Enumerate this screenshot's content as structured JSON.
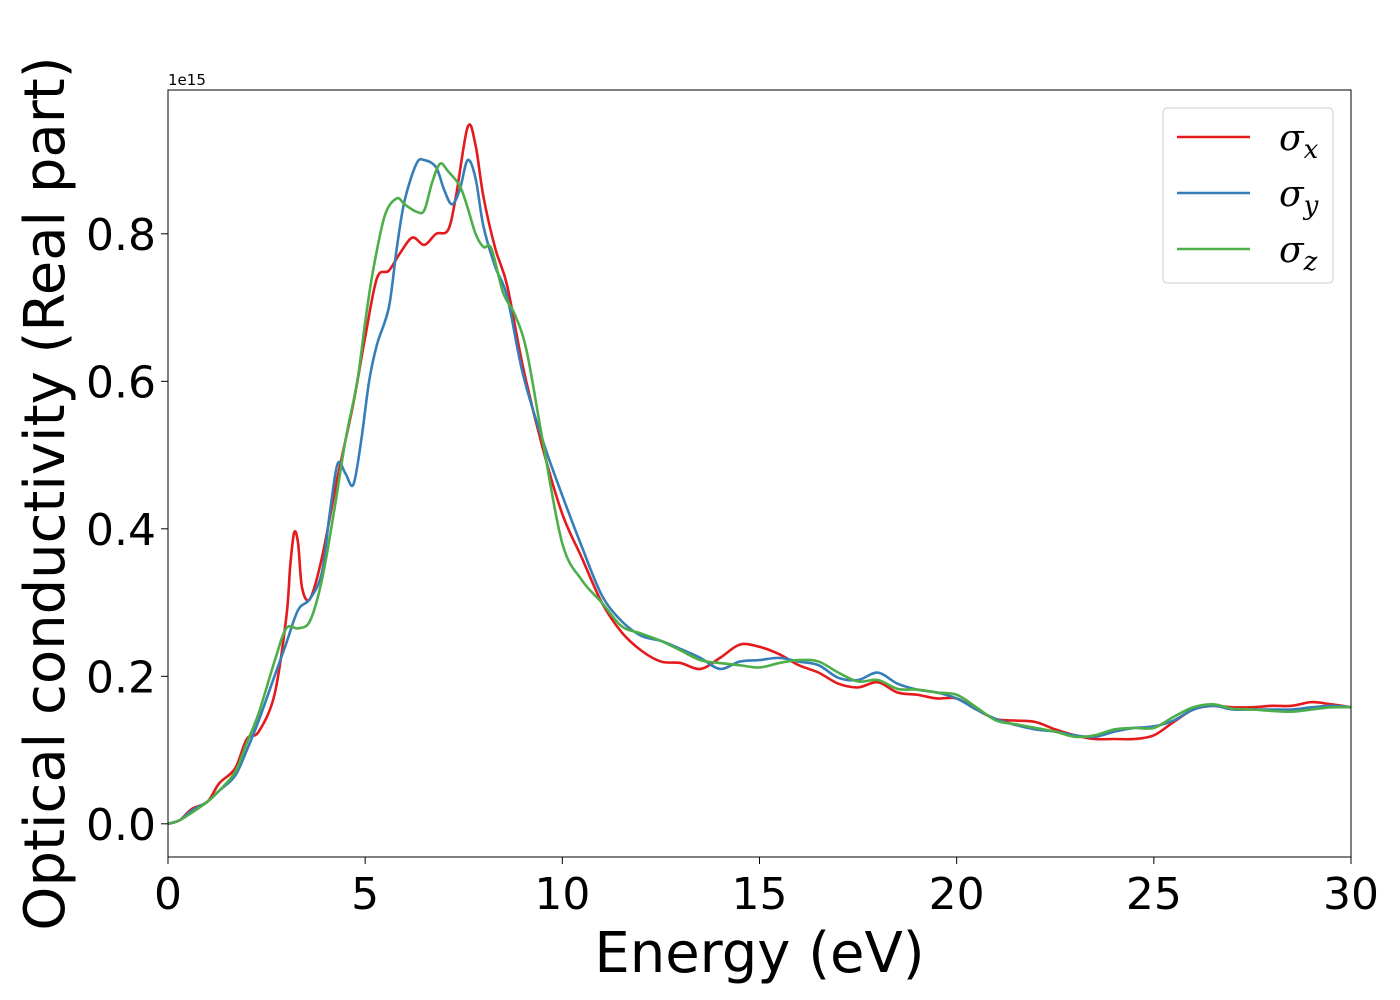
{
  "chart_data": {
    "type": "line",
    "xlabel": "Energy (eV)",
    "ylabel": "Optical conductivity (Real part)",
    "y_offset_text": "1e15",
    "xlim": [
      0,
      30
    ],
    "ylim": [
      -0.045,
      0.995
    ],
    "y_scale_factor": 1000000000000000.0,
    "xticks": [
      0,
      5,
      10,
      15,
      20,
      25,
      30
    ],
    "xtick_labels": [
      "0",
      "5",
      "10",
      "15",
      "20",
      "25",
      "30"
    ],
    "yticks": [
      0.0,
      0.2,
      0.4,
      0.6,
      0.8
    ],
    "ytick_labels": [
      "0.0",
      "0.2",
      "0.4",
      "0.6",
      "0.8"
    ],
    "grid": false,
    "legend": "top-right",
    "series": [
      {
        "name": "σx",
        "symbol": "σ",
        "subscript": "x",
        "color": "#e41a1c",
        "points": [
          [
            0,
            0
          ],
          [
            0.3,
            0.005
          ],
          [
            0.6,
            0.02
          ],
          [
            1.0,
            0.03
          ],
          [
            1.3,
            0.055
          ],
          [
            1.7,
            0.075
          ],
          [
            2.0,
            0.115
          ],
          [
            2.3,
            0.125
          ],
          [
            2.7,
            0.175
          ],
          [
            3.0,
            0.28
          ],
          [
            3.1,
            0.35
          ],
          [
            3.2,
            0.395
          ],
          [
            3.3,
            0.38
          ],
          [
            3.4,
            0.32
          ],
          [
            3.6,
            0.305
          ],
          [
            3.9,
            0.36
          ],
          [
            4.3,
            0.47
          ],
          [
            4.7,
            0.57
          ],
          [
            5.0,
            0.66
          ],
          [
            5.3,
            0.74
          ],
          [
            5.6,
            0.75
          ],
          [
            5.9,
            0.775
          ],
          [
            6.2,
            0.795
          ],
          [
            6.5,
            0.785
          ],
          [
            6.8,
            0.8
          ],
          [
            7.1,
            0.805
          ],
          [
            7.3,
            0.85
          ],
          [
            7.6,
            0.945
          ],
          [
            7.8,
            0.92
          ],
          [
            8.0,
            0.85
          ],
          [
            8.3,
            0.78
          ],
          [
            8.6,
            0.73
          ],
          [
            9.0,
            0.62
          ],
          [
            9.5,
            0.51
          ],
          [
            10.0,
            0.42
          ],
          [
            10.5,
            0.36
          ],
          [
            11.0,
            0.3
          ],
          [
            11.5,
            0.26
          ],
          [
            12.0,
            0.235
          ],
          [
            12.5,
            0.22
          ],
          [
            13.0,
            0.218
          ],
          [
            13.5,
            0.21
          ],
          [
            14.0,
            0.225
          ],
          [
            14.5,
            0.243
          ],
          [
            15.0,
            0.24
          ],
          [
            15.5,
            0.23
          ],
          [
            16.0,
            0.215
          ],
          [
            16.5,
            0.205
          ],
          [
            17.0,
            0.19
          ],
          [
            17.5,
            0.185
          ],
          [
            18.0,
            0.192
          ],
          [
            18.5,
            0.178
          ],
          [
            19.0,
            0.175
          ],
          [
            19.5,
            0.17
          ],
          [
            20.0,
            0.17
          ],
          [
            20.5,
            0.155
          ],
          [
            21.0,
            0.142
          ],
          [
            21.5,
            0.14
          ],
          [
            22.0,
            0.138
          ],
          [
            22.5,
            0.128
          ],
          [
            23.0,
            0.12
          ],
          [
            23.5,
            0.115
          ],
          [
            24.0,
            0.115
          ],
          [
            24.5,
            0.115
          ],
          [
            25.0,
            0.12
          ],
          [
            25.5,
            0.138
          ],
          [
            26.0,
            0.155
          ],
          [
            26.5,
            0.16
          ],
          [
            27.0,
            0.158
          ],
          [
            27.5,
            0.158
          ],
          [
            28.0,
            0.16
          ],
          [
            28.5,
            0.16
          ],
          [
            29.0,
            0.165
          ],
          [
            29.5,
            0.162
          ],
          [
            30.0,
            0.158
          ]
        ]
      },
      {
        "name": "σy",
        "symbol": "σ",
        "subscript": "y",
        "color": "#377eb8",
        "points": [
          [
            0,
            0
          ],
          [
            0.3,
            0.005
          ],
          [
            0.6,
            0.018
          ],
          [
            1.0,
            0.03
          ],
          [
            1.3,
            0.045
          ],
          [
            1.7,
            0.065
          ],
          [
            2.0,
            0.1
          ],
          [
            2.3,
            0.14
          ],
          [
            2.7,
            0.2
          ],
          [
            3.0,
            0.245
          ],
          [
            3.3,
            0.29
          ],
          [
            3.6,
            0.305
          ],
          [
            3.9,
            0.34
          ],
          [
            4.1,
            0.42
          ],
          [
            4.3,
            0.488
          ],
          [
            4.5,
            0.475
          ],
          [
            4.7,
            0.46
          ],
          [
            4.9,
            0.52
          ],
          [
            5.1,
            0.6
          ],
          [
            5.3,
            0.65
          ],
          [
            5.6,
            0.7
          ],
          [
            5.8,
            0.78
          ],
          [
            6.0,
            0.845
          ],
          [
            6.3,
            0.895
          ],
          [
            6.5,
            0.9
          ],
          [
            6.8,
            0.89
          ],
          [
            7.0,
            0.86
          ],
          [
            7.2,
            0.84
          ],
          [
            7.4,
            0.86
          ],
          [
            7.6,
            0.9
          ],
          [
            7.8,
            0.875
          ],
          [
            8.0,
            0.81
          ],
          [
            8.3,
            0.755
          ],
          [
            8.6,
            0.715
          ],
          [
            9.0,
            0.61
          ],
          [
            9.5,
            0.52
          ],
          [
            10.0,
            0.445
          ],
          [
            10.5,
            0.375
          ],
          [
            11.0,
            0.31
          ],
          [
            11.5,
            0.275
          ],
          [
            12.0,
            0.255
          ],
          [
            12.5,
            0.248
          ],
          [
            13.0,
            0.237
          ],
          [
            13.5,
            0.225
          ],
          [
            14.0,
            0.21
          ],
          [
            14.5,
            0.22
          ],
          [
            15.0,
            0.222
          ],
          [
            15.5,
            0.225
          ],
          [
            16.0,
            0.22
          ],
          [
            16.5,
            0.215
          ],
          [
            17.0,
            0.198
          ],
          [
            17.5,
            0.195
          ],
          [
            18.0,
            0.205
          ],
          [
            18.5,
            0.19
          ],
          [
            19.0,
            0.182
          ],
          [
            19.5,
            0.178
          ],
          [
            20.0,
            0.17
          ],
          [
            20.5,
            0.155
          ],
          [
            21.0,
            0.142
          ],
          [
            21.5,
            0.134
          ],
          [
            22.0,
            0.128
          ],
          [
            22.5,
            0.125
          ],
          [
            23.0,
            0.12
          ],
          [
            23.5,
            0.118
          ],
          [
            24.0,
            0.125
          ],
          [
            24.5,
            0.13
          ],
          [
            25.0,
            0.132
          ],
          [
            25.5,
            0.14
          ],
          [
            26.0,
            0.155
          ],
          [
            26.5,
            0.16
          ],
          [
            27.0,
            0.155
          ],
          [
            27.5,
            0.155
          ],
          [
            28.0,
            0.155
          ],
          [
            28.5,
            0.155
          ],
          [
            29.0,
            0.158
          ],
          [
            29.5,
            0.16
          ],
          [
            30.0,
            0.158
          ]
        ]
      },
      {
        "name": "σz",
        "symbol": "σ",
        "subscript": "z",
        "color": "#4daf4a",
        "points": [
          [
            0,
            0
          ],
          [
            0.3,
            0.005
          ],
          [
            0.6,
            0.015
          ],
          [
            1.0,
            0.03
          ],
          [
            1.3,
            0.045
          ],
          [
            1.7,
            0.07
          ],
          [
            2.0,
            0.11
          ],
          [
            2.3,
            0.15
          ],
          [
            2.7,
            0.22
          ],
          [
            3.0,
            0.265
          ],
          [
            3.3,
            0.265
          ],
          [
            3.6,
            0.275
          ],
          [
            3.9,
            0.33
          ],
          [
            4.2,
            0.42
          ],
          [
            4.5,
            0.52
          ],
          [
            4.8,
            0.6
          ],
          [
            5.0,
            0.68
          ],
          [
            5.2,
            0.75
          ],
          [
            5.5,
            0.825
          ],
          [
            5.8,
            0.848
          ],
          [
            6.0,
            0.84
          ],
          [
            6.3,
            0.83
          ],
          [
            6.5,
            0.832
          ],
          [
            6.7,
            0.87
          ],
          [
            6.9,
            0.895
          ],
          [
            7.1,
            0.885
          ],
          [
            7.4,
            0.865
          ],
          [
            7.6,
            0.835
          ],
          [
            7.8,
            0.8
          ],
          [
            8.0,
            0.782
          ],
          [
            8.2,
            0.78
          ],
          [
            8.5,
            0.72
          ],
          [
            8.8,
            0.69
          ],
          [
            9.1,
            0.64
          ],
          [
            9.5,
            0.52
          ],
          [
            10.0,
            0.38
          ],
          [
            10.5,
            0.33
          ],
          [
            11.0,
            0.3
          ],
          [
            11.5,
            0.268
          ],
          [
            12.0,
            0.258
          ],
          [
            12.5,
            0.248
          ],
          [
            13.0,
            0.235
          ],
          [
            13.5,
            0.222
          ],
          [
            14.0,
            0.218
          ],
          [
            14.5,
            0.215
          ],
          [
            15.0,
            0.212
          ],
          [
            15.5,
            0.218
          ],
          [
            16.0,
            0.222
          ],
          [
            16.5,
            0.22
          ],
          [
            17.0,
            0.205
          ],
          [
            17.5,
            0.193
          ],
          [
            18.0,
            0.195
          ],
          [
            18.5,
            0.183
          ],
          [
            19.0,
            0.182
          ],
          [
            19.5,
            0.178
          ],
          [
            20.0,
            0.175
          ],
          [
            20.5,
            0.158
          ],
          [
            21.0,
            0.14
          ],
          [
            21.5,
            0.135
          ],
          [
            22.0,
            0.13
          ],
          [
            22.5,
            0.125
          ],
          [
            23.0,
            0.118
          ],
          [
            23.5,
            0.12
          ],
          [
            24.0,
            0.128
          ],
          [
            24.5,
            0.13
          ],
          [
            25.0,
            0.13
          ],
          [
            25.5,
            0.145
          ],
          [
            26.0,
            0.158
          ],
          [
            26.5,
            0.162
          ],
          [
            27.0,
            0.156
          ],
          [
            27.5,
            0.155
          ],
          [
            28.0,
            0.153
          ],
          [
            28.5,
            0.152
          ],
          [
            29.0,
            0.155
          ],
          [
            29.5,
            0.158
          ],
          [
            30.0,
            0.158
          ]
        ]
      }
    ]
  }
}
